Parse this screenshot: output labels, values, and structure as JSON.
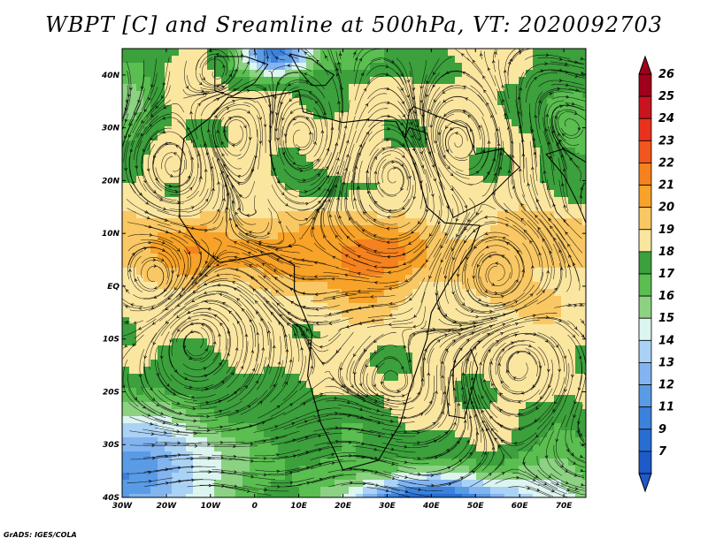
{
  "title": "WBPT [C] and Sreamline at 500hPa, VT: 2020092703",
  "credit": "GrADS: IGES/COLA",
  "map": {
    "lon_labels": [
      "30W",
      "20W",
      "10W",
      "0",
      "10E",
      "20E",
      "30E",
      "40E",
      "50E",
      "60E",
      "70E"
    ],
    "lat_labels": [
      "40N",
      "30N",
      "20N",
      "10N",
      "EQ",
      "10S",
      "20S",
      "30S",
      "40S"
    ],
    "lon_range": [
      -30,
      75
    ],
    "lat_range": [
      -40,
      45
    ]
  },
  "colorbar": {
    "labels": [
      "26",
      "25",
      "24",
      "23",
      "22",
      "21",
      "20",
      "19",
      "18",
      "17",
      "16",
      "15",
      "14",
      "13",
      "12",
      "11",
      "9",
      "7"
    ],
    "colors": [
      "#a0001a",
      "#c8141e",
      "#e8321e",
      "#f0561e",
      "#f5821e",
      "#f7a228",
      "#f9c864",
      "#fbe6a0",
      "#3ca03c",
      "#5abe50",
      "#8cd282",
      "#dcf5f0",
      "#aad2f5",
      "#82b4f0",
      "#5a9be6",
      "#3c82dc",
      "#286ed2",
      "#1e5ac8"
    ]
  },
  "icons": {
    "arrow_up": "colorbar-arrow-up-icon",
    "arrow_down": "colorbar-arrow-down-icon"
  }
}
